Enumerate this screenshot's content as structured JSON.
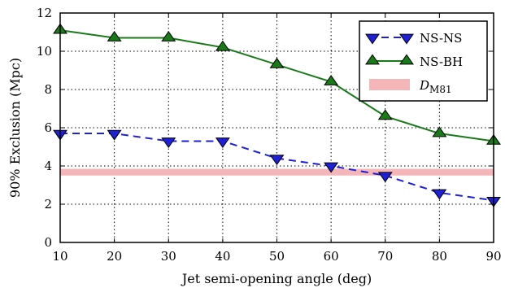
{
  "chart_data": {
    "type": "line",
    "xlabel": "Jet semi-opening angle (deg)",
    "ylabel": "90% Exclusion (Mpc)",
    "xlim": [
      10,
      90
    ],
    "ylim": [
      0,
      12
    ],
    "xticks": [
      10,
      20,
      30,
      40,
      50,
      60,
      70,
      80,
      90
    ],
    "yticks": [
      0,
      2,
      4,
      6,
      8,
      10,
      12
    ],
    "grid": true,
    "legend_position": "top-right",
    "x": [
      10,
      20,
      30,
      40,
      50,
      60,
      70,
      80,
      90
    ],
    "series": [
      {
        "name": "NS-NS",
        "values": [
          5.7,
          5.7,
          5.3,
          5.3,
          4.4,
          4.0,
          3.5,
          2.6,
          2.2
        ],
        "color": "#1f1fd6",
        "line_style": "dashed",
        "marker": "triangle-down"
      },
      {
        "name": "NS-BH",
        "values": [
          11.1,
          10.7,
          10.7,
          10.2,
          9.3,
          8.4,
          6.6,
          5.7,
          5.3
        ],
        "color": "#1a7a1a",
        "line_style": "solid",
        "marker": "triangle-up"
      }
    ],
    "band": {
      "name_main": "D",
      "name_sub": "M81",
      "y_range": [
        3.5,
        3.85
      ],
      "color": "#f4b6b8"
    }
  }
}
